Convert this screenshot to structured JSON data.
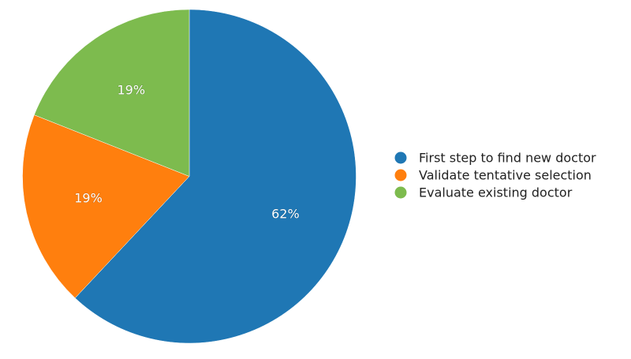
{
  "chart_data": {
    "type": "pie",
    "title": "",
    "start_angle_deg": 0,
    "direction": "clockwise",
    "slices": [
      {
        "label": "First step to find new doctor",
        "value": 62,
        "display": "62%",
        "color": "#1f77b4"
      },
      {
        "label": "Validate tentative selection",
        "value": 19,
        "display": "19%",
        "color": "#ff7f0e"
      },
      {
        "label": "Evaluate existing doctor",
        "value": 19,
        "display": "19%",
        "color": "#7dbb4e"
      }
    ],
    "legend": {
      "position": "right"
    }
  }
}
